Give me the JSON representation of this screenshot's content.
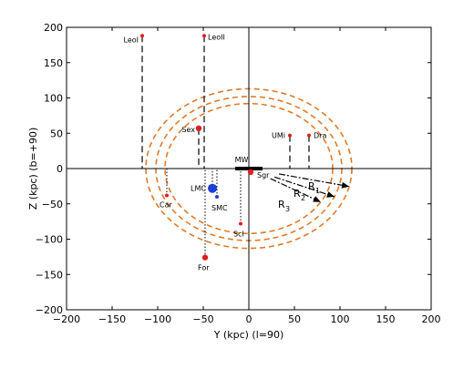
{
  "chart_data": {
    "type": "scatter",
    "xlabel": "Y (kpc) (l=90)",
    "ylabel": "Z (kpc) (b=+90)",
    "xlim": [
      -200,
      200
    ],
    "ylim": [
      -200,
      200
    ],
    "xticks": [
      -200,
      -150,
      -100,
      -50,
      0,
      50,
      100,
      150,
      200
    ],
    "yticks": [
      -200,
      -150,
      -100,
      -50,
      0,
      50,
      100,
      150,
      200
    ],
    "xtick_labels": [
      "−200",
      "−150",
      "−100",
      "−50",
      "0",
      "50",
      "100",
      "150",
      "200"
    ],
    "ytick_labels": [
      "−200",
      "−150",
      "−100",
      "−50",
      "0",
      "50",
      "100",
      "150",
      "200"
    ],
    "grid": false,
    "reference_lines": {
      "x": 0,
      "y": 0
    },
    "colors": {
      "satellite": "#e0201c",
      "magellanic": "#1d3fd6",
      "rings": "#e07a2a",
      "text": "#000000"
    },
    "rings": [
      {
        "label": "R",
        "subscript": "1",
        "radius": 113
      },
      {
        "label": "R",
        "subscript": "2",
        "radius": 102
      },
      {
        "label": "R",
        "subscript": "3",
        "radius": 92
      }
    ],
    "series": [
      {
        "points": [
          {
            "name": "LeoI",
            "x": -117,
            "y": 188,
            "size": "small",
            "drop": "dashed"
          },
          {
            "name": "LeoII",
            "x": -49,
            "y": 188,
            "size": "small",
            "drop": "dashed"
          },
          {
            "name": "Sex",
            "x": -55,
            "y": 57,
            "size": "medium",
            "drop": "dashed"
          },
          {
            "name": "UMi",
            "x": 45,
            "y": 47,
            "size": "small",
            "drop": "dashed"
          },
          {
            "name": "Dra",
            "x": 66,
            "y": 47,
            "size": "small",
            "drop": "dashed"
          },
          {
            "name": "Car",
            "x": -90,
            "y": -38,
            "size": "small",
            "drop": "dotted"
          },
          {
            "name": "Scl",
            "x": -9,
            "y": -78,
            "size": "small",
            "drop": "dotted"
          },
          {
            "name": "For",
            "x": -48,
            "y": -126,
            "size": "medium",
            "drop": "dotted"
          },
          {
            "name": "Sgr",
            "x": 2,
            "y": -5,
            "size": "medium",
            "drop": "none"
          }
        ]
      },
      {
        "points": [
          {
            "name": "LMC",
            "x": -40,
            "y": -28,
            "size": "large",
            "drop": "dotted"
          },
          {
            "name": "SMC",
            "x": -35,
            "y": -40,
            "size": "small",
            "drop": "dotted"
          }
        ]
      }
    ],
    "milky_way": {
      "label": "MW",
      "x_range": [
        -15,
        15
      ],
      "y": 0
    }
  }
}
